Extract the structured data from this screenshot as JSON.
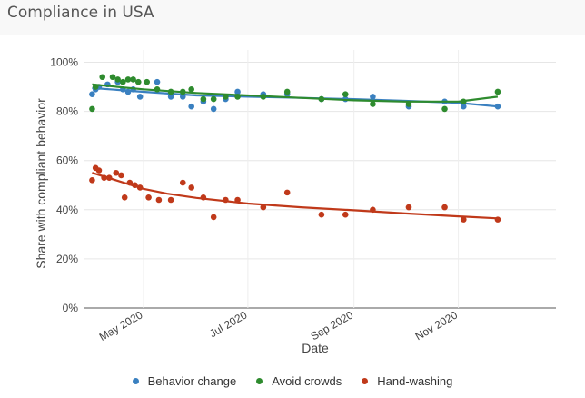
{
  "page": {
    "title": "Compliance in USA"
  },
  "chart_data": {
    "type": "scatter",
    "xlabel": "Date",
    "ylabel": "Share with compliant behavior",
    "x_range": [
      "2020-03-27",
      "2020-12-28"
    ],
    "x_ticks": [
      {
        "date": "2020-05-01",
        "label": "May 2020"
      },
      {
        "date": "2020-07-01",
        "label": "Jul 2020"
      },
      {
        "date": "2020-09-01",
        "label": "Sep 2020"
      },
      {
        "date": "2020-11-01",
        "label": "Nov 2020"
      }
    ],
    "ylim": [
      0,
      105
    ],
    "y_ticks": [
      {
        "value": 0,
        "label": "0%"
      },
      {
        "value": 20,
        "label": "20%"
      },
      {
        "value": 40,
        "label": "40%"
      },
      {
        "value": 60,
        "label": "60%"
      },
      {
        "value": 80,
        "label": "80%"
      },
      {
        "value": 100,
        "label": "100%"
      }
    ],
    "grid": true,
    "legend_position": "bottom",
    "series": [
      {
        "name": "Behavior change",
        "color": "#3a80c0",
        "points": [
          [
            "2020-04-01",
            87
          ],
          [
            "2020-04-03",
            89
          ],
          [
            "2020-04-05",
            90
          ],
          [
            "2020-04-10",
            91
          ],
          [
            "2020-04-16",
            92
          ],
          [
            "2020-04-19",
            89
          ],
          [
            "2020-04-22",
            88
          ],
          [
            "2020-04-25",
            89
          ],
          [
            "2020-04-29",
            86
          ],
          [
            "2020-05-09",
            92
          ],
          [
            "2020-05-17",
            86
          ],
          [
            "2020-05-24",
            86
          ],
          [
            "2020-05-29",
            82
          ],
          [
            "2020-06-05",
            84
          ],
          [
            "2020-06-11",
            81
          ],
          [
            "2020-06-18",
            85
          ],
          [
            "2020-06-25",
            88
          ],
          [
            "2020-07-10",
            87
          ],
          [
            "2020-07-24",
            87
          ],
          [
            "2020-08-13",
            85
          ],
          [
            "2020-08-27",
            85
          ],
          [
            "2020-09-12",
            86
          ],
          [
            "2020-10-03",
            82
          ],
          [
            "2020-10-24",
            84
          ],
          [
            "2020-11-04",
            82
          ],
          [
            "2020-11-24",
            82
          ]
        ],
        "trend": [
          [
            "2020-04-01",
            89.5
          ],
          [
            "2020-05-01",
            88
          ],
          [
            "2020-06-01",
            86.5
          ],
          [
            "2020-07-01",
            86
          ],
          [
            "2020-08-01",
            85.5
          ],
          [
            "2020-09-01",
            85
          ],
          [
            "2020-10-01",
            84.3
          ],
          [
            "2020-11-01",
            83.5
          ],
          [
            "2020-11-24",
            82
          ]
        ]
      },
      {
        "name": "Avoid crowds",
        "color": "#2e8b2e",
        "points": [
          [
            "2020-04-01",
            81
          ],
          [
            "2020-04-03",
            90
          ],
          [
            "2020-04-07",
            94
          ],
          [
            "2020-04-13",
            94
          ],
          [
            "2020-04-16",
            93
          ],
          [
            "2020-04-19",
            92
          ],
          [
            "2020-04-22",
            93
          ],
          [
            "2020-04-25",
            93
          ],
          [
            "2020-04-28",
            92
          ],
          [
            "2020-05-03",
            92
          ],
          [
            "2020-05-09",
            89
          ],
          [
            "2020-05-17",
            88
          ],
          [
            "2020-05-24",
            88
          ],
          [
            "2020-05-29",
            89
          ],
          [
            "2020-06-05",
            85
          ],
          [
            "2020-06-11",
            85
          ],
          [
            "2020-06-18",
            86
          ],
          [
            "2020-06-25",
            86
          ],
          [
            "2020-07-10",
            86
          ],
          [
            "2020-07-24",
            88
          ],
          [
            "2020-08-13",
            85
          ],
          [
            "2020-08-27",
            87
          ],
          [
            "2020-09-12",
            83
          ],
          [
            "2020-10-03",
            83
          ],
          [
            "2020-10-24",
            81
          ],
          [
            "2020-11-04",
            84
          ],
          [
            "2020-11-24",
            88
          ]
        ],
        "trend": [
          [
            "2020-04-01",
            91
          ],
          [
            "2020-05-01",
            89
          ],
          [
            "2020-06-01",
            87.5
          ],
          [
            "2020-07-01",
            86.5
          ],
          [
            "2020-08-01",
            85.5
          ],
          [
            "2020-09-01",
            84.5
          ],
          [
            "2020-10-01",
            84
          ],
          [
            "2020-11-01",
            84
          ],
          [
            "2020-11-24",
            86
          ]
        ]
      },
      {
        "name": "Hand-washing",
        "color": "#c0391a",
        "points": [
          [
            "2020-04-01",
            52
          ],
          [
            "2020-04-03",
            57
          ],
          [
            "2020-04-05",
            56
          ],
          [
            "2020-04-08",
            53
          ],
          [
            "2020-04-11",
            53
          ],
          [
            "2020-04-15",
            55
          ],
          [
            "2020-04-18",
            54
          ],
          [
            "2020-04-20",
            45
          ],
          [
            "2020-04-23",
            51
          ],
          [
            "2020-04-26",
            50
          ],
          [
            "2020-04-29",
            49
          ],
          [
            "2020-05-04",
            45
          ],
          [
            "2020-05-10",
            44
          ],
          [
            "2020-05-17",
            44
          ],
          [
            "2020-05-24",
            51
          ],
          [
            "2020-05-29",
            49
          ],
          [
            "2020-06-05",
            45
          ],
          [
            "2020-06-11",
            37
          ],
          [
            "2020-06-18",
            44
          ],
          [
            "2020-06-25",
            44
          ],
          [
            "2020-07-10",
            41
          ],
          [
            "2020-07-24",
            47
          ],
          [
            "2020-08-13",
            38
          ],
          [
            "2020-08-27",
            38
          ],
          [
            "2020-09-12",
            40
          ],
          [
            "2020-10-03",
            41
          ],
          [
            "2020-10-24",
            41
          ],
          [
            "2020-11-04",
            36
          ],
          [
            "2020-11-24",
            36
          ]
        ],
        "trend": [
          [
            "2020-04-01",
            55
          ],
          [
            "2020-04-15",
            52
          ],
          [
            "2020-05-01",
            48.5
          ],
          [
            "2020-05-15",
            46.5
          ],
          [
            "2020-06-01",
            44.8
          ],
          [
            "2020-07-01",
            42.5
          ],
          [
            "2020-08-01",
            41
          ],
          [
            "2020-09-01",
            39.8
          ],
          [
            "2020-10-01",
            38.5
          ],
          [
            "2020-11-01",
            37.3
          ],
          [
            "2020-11-24",
            36.5
          ]
        ]
      }
    ]
  }
}
